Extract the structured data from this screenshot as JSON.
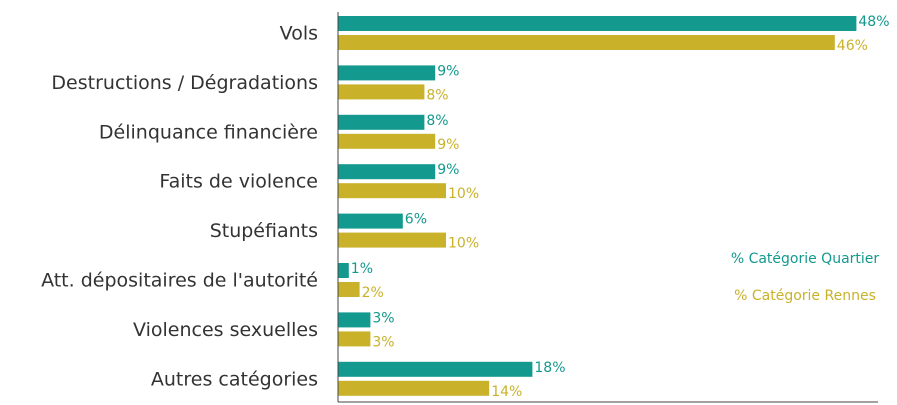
{
  "chart_data": {
    "type": "bar",
    "orientation": "horizontal",
    "categories": [
      "Vols",
      "Destructions / Dégradations",
      "Délinquance financière",
      "Faits de violence",
      "Stupéfiants",
      "Att. dépositaires de l'autorité",
      "Violences sexuelles",
      "Autres catégories"
    ],
    "series": [
      {
        "name": "% Catégorie Quartier",
        "color": "#14998e",
        "values": [
          48,
          9,
          8,
          9,
          6,
          1,
          3,
          18
        ],
        "value_labels": [
          "48%",
          "9%",
          "8%",
          "9%",
          "6%",
          "1%",
          "3%",
          "18%"
        ]
      },
      {
        "name": "% Catégorie Rennes",
        "color": "#c9b22a",
        "values": [
          46,
          8,
          9,
          10,
          10,
          2,
          3,
          14
        ],
        "value_labels": [
          "46%",
          "8%",
          "9%",
          "10%",
          "10%",
          "2%",
          "3%",
          "14%"
        ]
      }
    ],
    "xlim": [
      0,
      50
    ],
    "legend": "right"
  }
}
